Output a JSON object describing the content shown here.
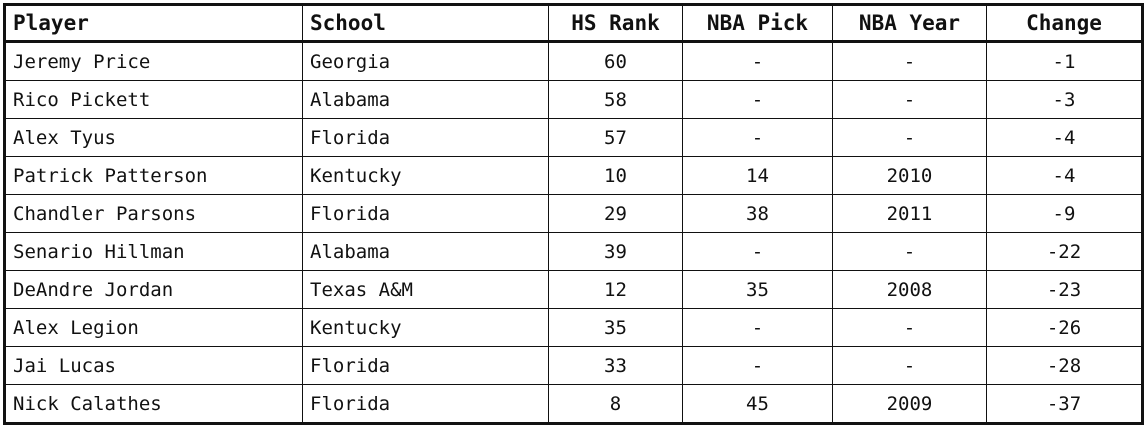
{
  "table": {
    "headers": {
      "player": "Player",
      "school": "School",
      "hs_rank": "HS Rank",
      "nba_pick": "NBA Pick",
      "nba_year": "NBA Year",
      "change": "Change"
    },
    "rows": [
      {
        "player": "Jeremy Price",
        "school": "Georgia",
        "hs_rank": "60",
        "nba_pick": "-",
        "nba_year": "-",
        "change": "-1"
      },
      {
        "player": "Rico Pickett",
        "school": "Alabama",
        "hs_rank": "58",
        "nba_pick": "-",
        "nba_year": "-",
        "change": "-3"
      },
      {
        "player": "Alex Tyus",
        "school": "Florida",
        "hs_rank": "57",
        "nba_pick": "-",
        "nba_year": "-",
        "change": "-4"
      },
      {
        "player": "Patrick Patterson",
        "school": "Kentucky",
        "hs_rank": "10",
        "nba_pick": "14",
        "nba_year": "2010",
        "change": "-4"
      },
      {
        "player": "Chandler Parsons",
        "school": "Florida",
        "hs_rank": "29",
        "nba_pick": "38",
        "nba_year": "2011",
        "change": "-9"
      },
      {
        "player": "Senario Hillman",
        "school": "Alabama",
        "hs_rank": "39",
        "nba_pick": "-",
        "nba_year": "-",
        "change": "-22"
      },
      {
        "player": "DeAndre Jordan",
        "school": "Texas A&M",
        "hs_rank": "12",
        "nba_pick": "35",
        "nba_year": "2008",
        "change": "-23"
      },
      {
        "player": "Alex Legion",
        "school": "Kentucky",
        "hs_rank": "35",
        "nba_pick": "-",
        "nba_year": "-",
        "change": "-26"
      },
      {
        "player": "Jai Lucas",
        "school": "Florida",
        "hs_rank": "33",
        "nba_pick": "-",
        "nba_year": "-",
        "change": "-28"
      },
      {
        "player": "Nick Calathes",
        "school": "Florida",
        "hs_rank": "8",
        "nba_pick": "45",
        "nba_year": "2009",
        "change": "-37"
      }
    ]
  }
}
